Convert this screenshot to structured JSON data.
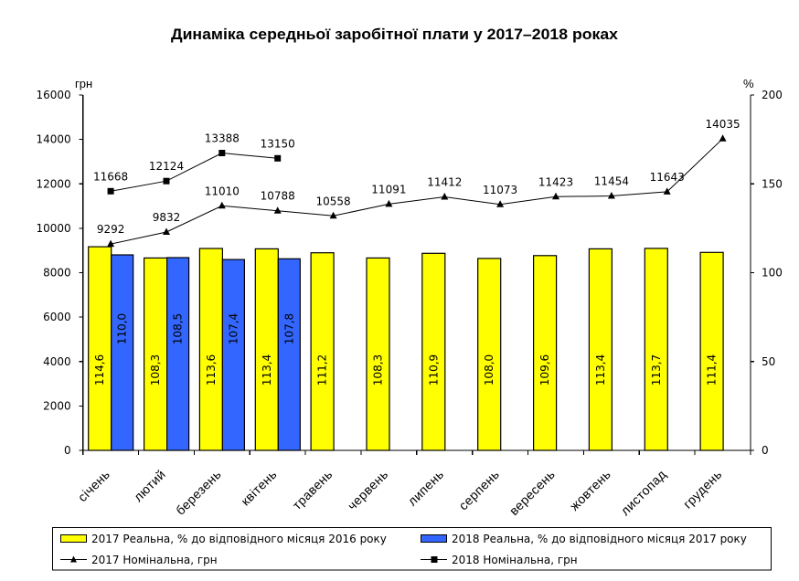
{
  "chart_data": {
    "type": "bar",
    "title": "Динаміка середньої заробітної плати у 2017–2018 роках",
    "categories": [
      "січень",
      "лютий",
      "березень",
      "квітень",
      "травень",
      "червень",
      "липень",
      "серпень",
      "вересень",
      "жовтень",
      "листопад",
      "грудень"
    ],
    "y_left": {
      "label": "грн",
      "range": [
        0,
        16000
      ],
      "ticks": [
        0,
        2000,
        4000,
        6000,
        8000,
        10000,
        12000,
        14000,
        16000
      ]
    },
    "y_right": {
      "label": "%",
      "range": [
        0,
        200
      ],
      "ticks": [
        0,
        50,
        100,
        150,
        200
      ]
    },
    "decimal_separator": ",",
    "series": [
      {
        "name": "2017 Реальна, % до відповідного місяця 2016 року",
        "type": "bar",
        "axis": "right",
        "color": "#FFFF00",
        "values": [
          114.6,
          108.3,
          113.6,
          113.4,
          111.2,
          108.3,
          110.9,
          108.0,
          109.6,
          113.4,
          113.7,
          111.4
        ]
      },
      {
        "name": "2018 Реальна, % до відповідного місяця 2017 року",
        "type": "bar",
        "axis": "right",
        "color": "#3366FF",
        "values": [
          110.0,
          108.5,
          107.4,
          107.8,
          null,
          null,
          null,
          null,
          null,
          null,
          null,
          null
        ]
      },
      {
        "name": "2017 Номінальна, грн",
        "type": "line",
        "axis": "left",
        "marker": "triangle",
        "color": "#000000",
        "values": [
          9292,
          9832,
          11010,
          10788,
          10558,
          11091,
          11412,
          11073,
          11423,
          11454,
          11643,
          14035
        ]
      },
      {
        "name": "2018 Номінальна, грн",
        "type": "line",
        "axis": "left",
        "marker": "square",
        "color": "#000000",
        "values": [
          11668,
          12124,
          13388,
          13150,
          null,
          null,
          null,
          null,
          null,
          null,
          null,
          null
        ]
      }
    ],
    "grid": false,
    "legend": "bottom"
  }
}
